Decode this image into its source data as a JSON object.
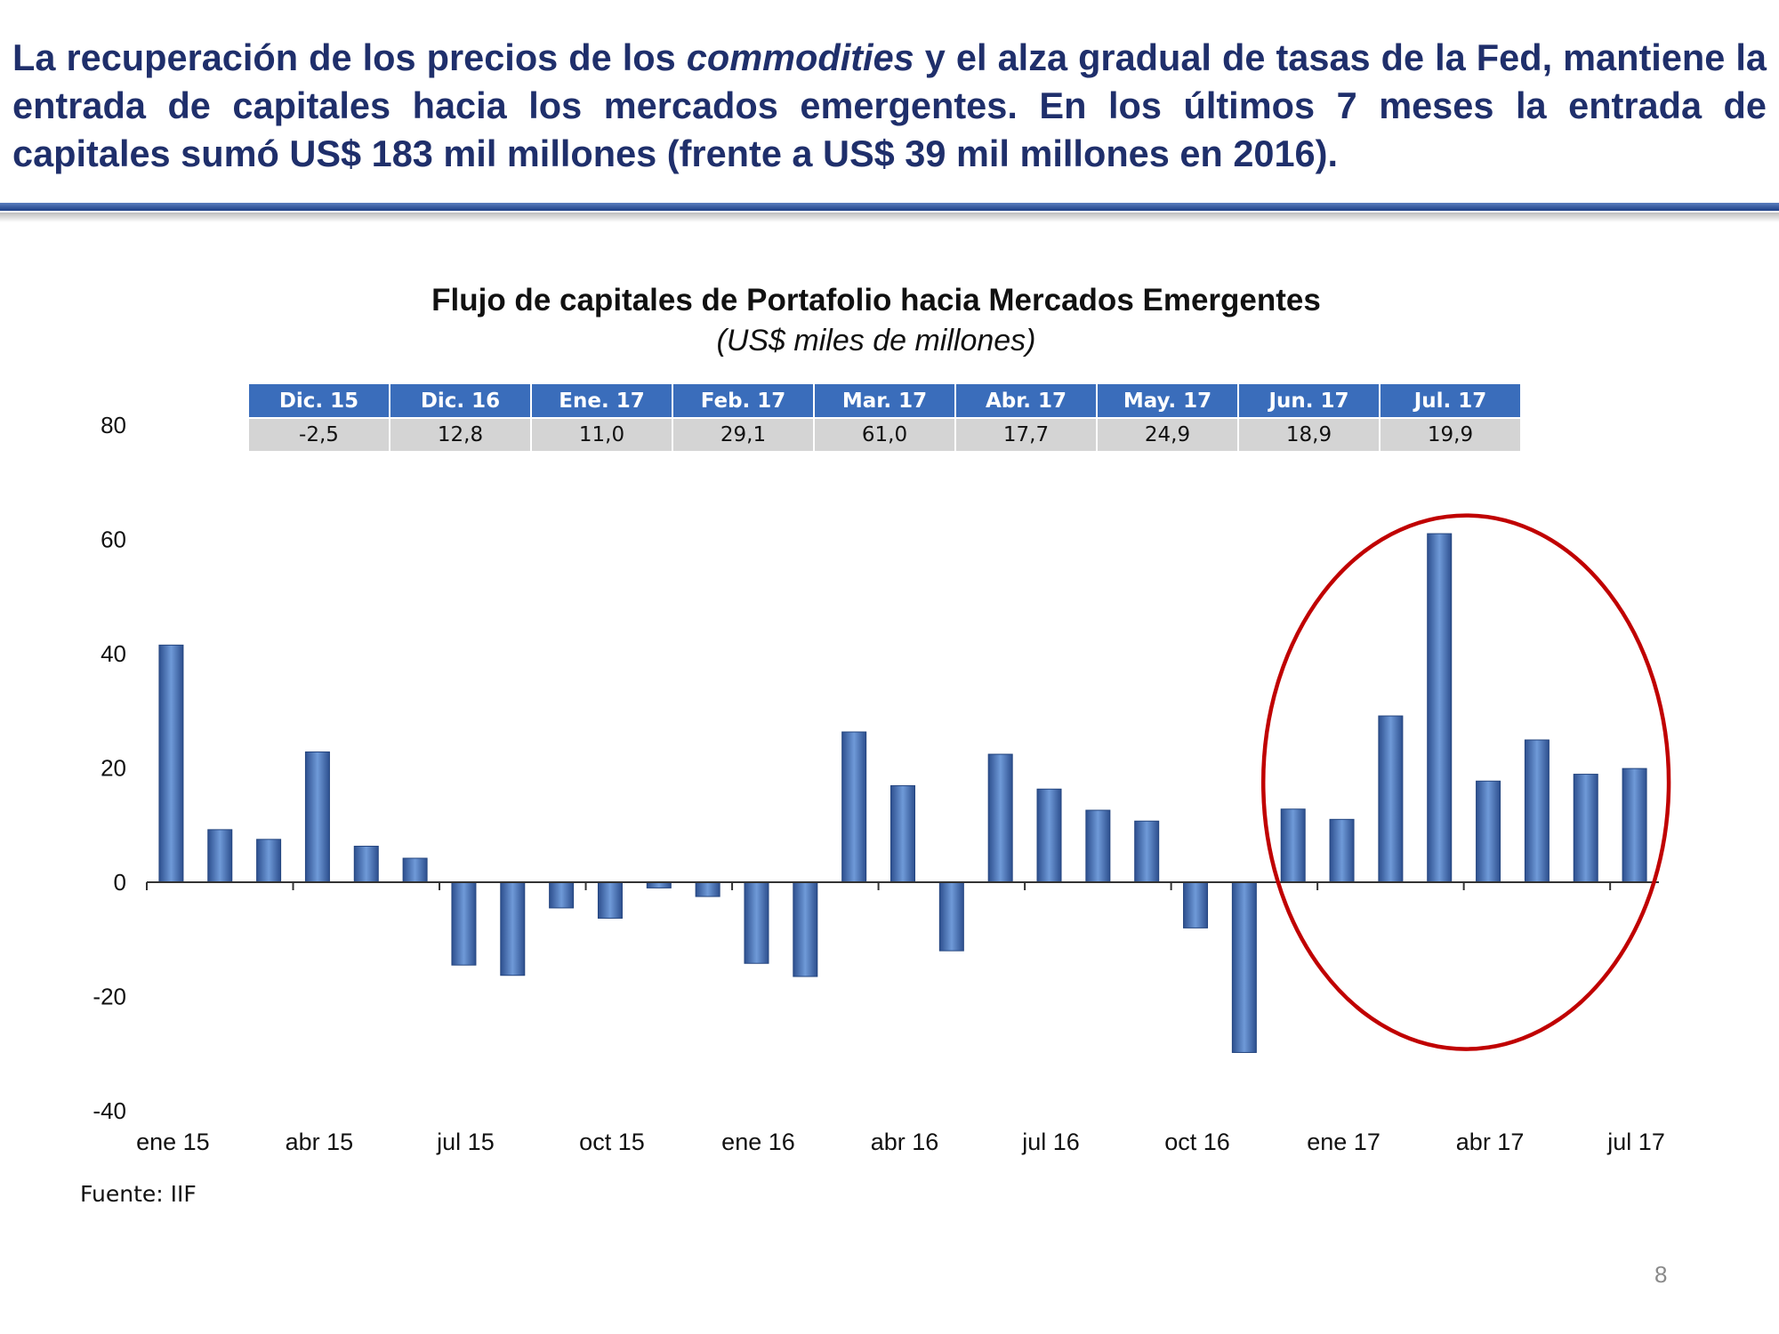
{
  "headline": {
    "part1": "La recuperación de los precios de los ",
    "emphasis": "commodities",
    "part2": " y el alza gradual de tasas de la Fed, mantiene la entrada de capitales hacia los mercados emergentes. En los últimos 7 meses la entrada de capitales sumó US$ 183 mil millones (frente a US$ 39 mil millones en 2016)."
  },
  "summary_table": {
    "headers": [
      "Dic. 15",
      "Dic. 16",
      "Ene. 17",
      "Feb. 17",
      "Mar. 17",
      "Abr. 17",
      "May. 17",
      "Jun. 17",
      "Jul. 17"
    ],
    "values": [
      "-2,5",
      "12,8",
      "11,0",
      "29,1",
      "61,0",
      "17,7",
      "24,9",
      "18,9",
      "19,9"
    ]
  },
  "chart_data": {
    "type": "bar",
    "title": "Flujo de capitales de Portafolio hacia Mercados Emergentes",
    "subtitle": "(US$ miles de millones)",
    "xlabel": "",
    "ylabel": "",
    "ylim": [
      -40,
      80
    ],
    "yticks": [
      80,
      60,
      40,
      20,
      0,
      -20,
      -40
    ],
    "xtick_labels": [
      "ene 15",
      "abr 15",
      "jul 15",
      "oct 15",
      "ene 16",
      "abr 16",
      "jul 16",
      "oct 16",
      "ene 17",
      "abr 17",
      "jul 17"
    ],
    "categories": [
      "ene 15",
      "feb 15",
      "mar 15",
      "abr 15",
      "may 15",
      "jun 15",
      "jul 15",
      "ago 15",
      "sep 15",
      "oct 15",
      "nov 15",
      "dic 15",
      "ene 16",
      "feb 16",
      "mar 16",
      "abr 16",
      "may 16",
      "jun 16",
      "jul 16",
      "ago 16",
      "sep 16",
      "oct 16",
      "nov 16",
      "dic 16",
      "ene 17",
      "feb 17",
      "mar 17",
      "abr 17",
      "may 17",
      "jun 17",
      "jul 17"
    ],
    "values": [
      41.5,
      9.2,
      7.5,
      22.8,
      6.3,
      4.2,
      -14.5,
      -16.3,
      -4.5,
      -6.3,
      -1.0,
      -2.5,
      -14.2,
      -16.5,
      26.3,
      16.9,
      -12.0,
      22.4,
      16.3,
      12.6,
      10.7,
      -8.0,
      -29.8,
      12.8,
      11.0,
      29.1,
      61.0,
      17.7,
      24.9,
      18.9,
      19.9
    ],
    "grid": false,
    "legend": "none",
    "bar_color": "#4a76b8",
    "highlight_color": "#c00000",
    "highlight_range": [
      "dic 16",
      "jul 17"
    ]
  },
  "source": "Fuente: IIF",
  "page_number": "8",
  "colors": {
    "headline": "#1f2f6b",
    "table_header": "#3a6dbb",
    "table_values": "#d4d4d4"
  }
}
